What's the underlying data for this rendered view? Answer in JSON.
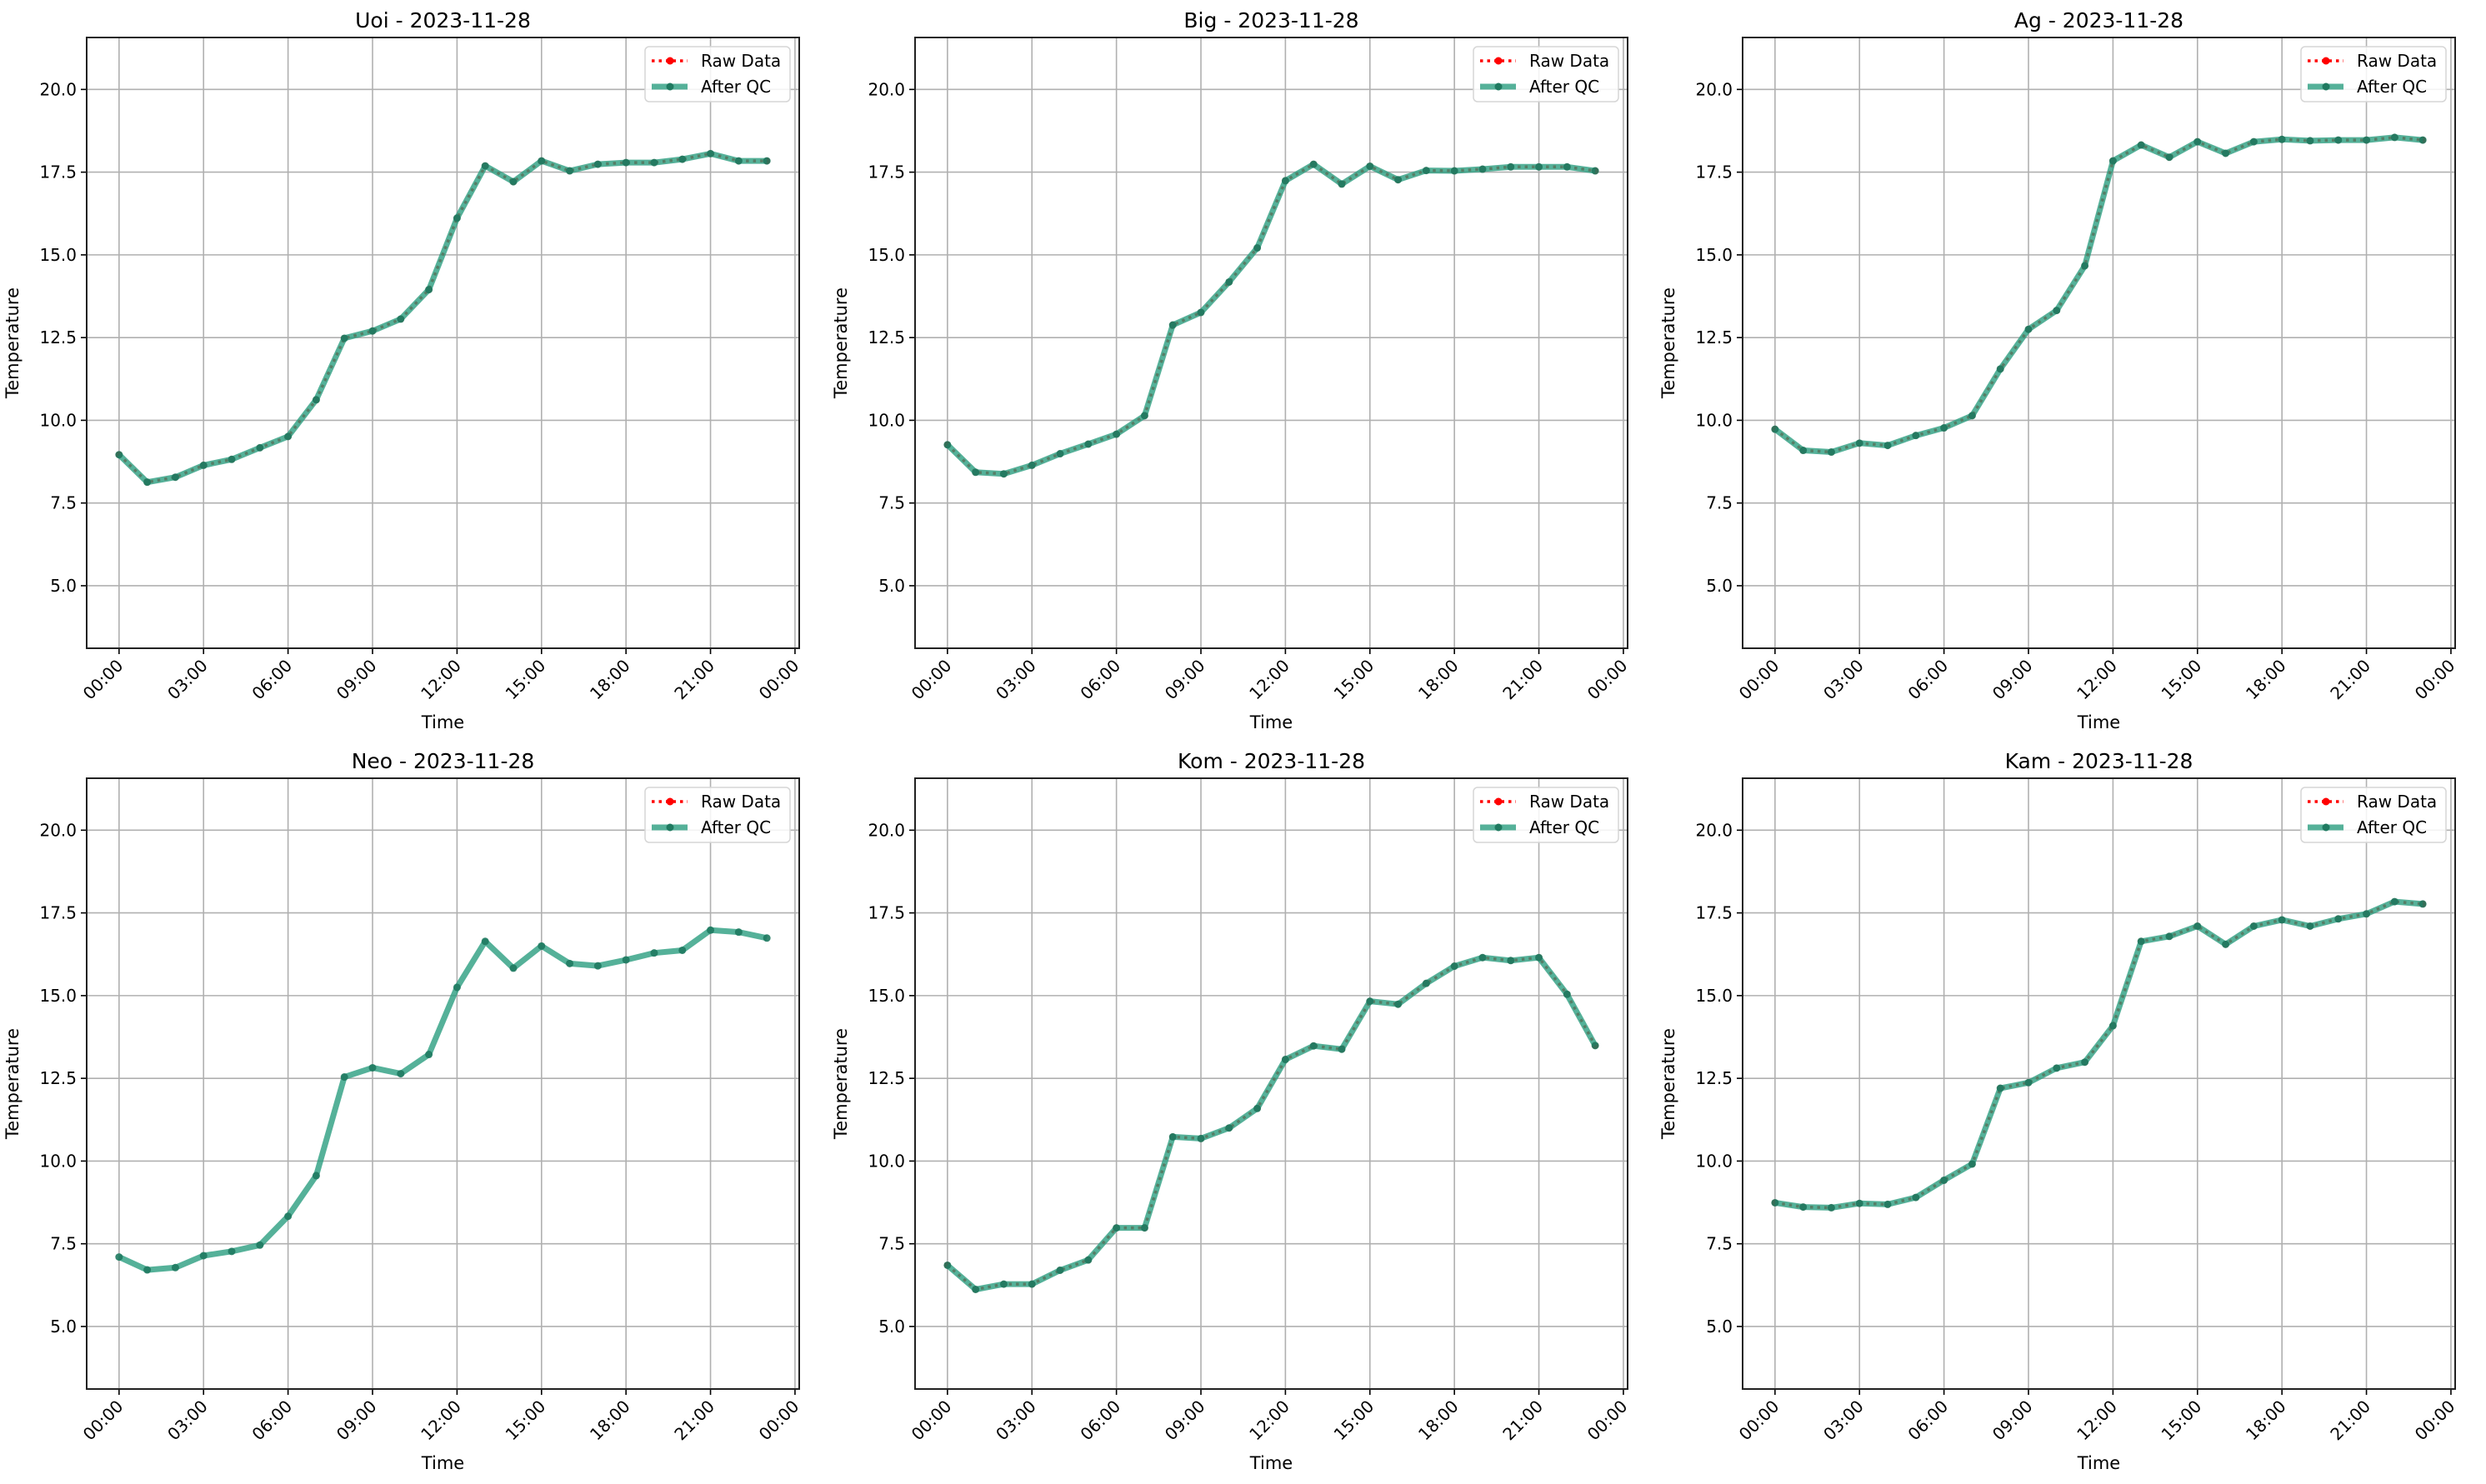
{
  "chart_data": {
    "type": "line",
    "layout": "2x3 grid of subplots",
    "shared": {
      "xlabel": "Time",
      "ylabel": "Temperature",
      "x_hours": [
        0,
        1,
        2,
        3,
        4,
        5,
        6,
        7,
        8,
        9,
        10,
        11,
        12,
        13,
        14,
        15,
        16,
        17,
        18,
        19,
        20,
        21,
        22,
        23
      ],
      "xticks_hours": [
        0,
        3,
        6,
        9,
        12,
        15,
        18,
        21,
        24
      ],
      "xtick_labels": [
        "00:00",
        "03:00",
        "06:00",
        "09:00",
        "12:00",
        "15:00",
        "18:00",
        "21:00",
        "00:00"
      ],
      "xlim_hours": [
        -1.15,
        24.15
      ],
      "yticks": [
        5.0,
        7.5,
        10.0,
        12.5,
        15.0,
        17.5,
        20.0
      ],
      "ytick_labels": [
        "5.0",
        "7.5",
        "10.0",
        "12.5",
        "15.0",
        "17.5",
        "20.0"
      ],
      "ylim": [
        3.11,
        21.57
      ],
      "grid": true,
      "legend_placement": "top-right",
      "legend": [
        {
          "label": "Raw Data",
          "color": "#ff0000",
          "style": "dotted, circle markers"
        },
        {
          "label": "After QC",
          "color": "#2a9d7f",
          "style": "solid thick, circle markers"
        }
      ]
    },
    "panels": [
      {
        "title": "Uoi - 2023-11-28",
        "raw": [
          8.96,
          8.13,
          8.28,
          8.64,
          8.82,
          9.17,
          9.51,
          10.62,
          12.48,
          12.7,
          13.06,
          13.95,
          16.11,
          17.69,
          17.21,
          17.84,
          17.54,
          17.74,
          17.79,
          17.79,
          17.89,
          18.06,
          17.84,
          17.84
        ],
        "qc": [
          8.96,
          8.13,
          8.28,
          8.64,
          8.82,
          9.17,
          9.51,
          10.62,
          12.48,
          12.7,
          13.06,
          13.95,
          16.11,
          17.69,
          17.21,
          17.84,
          17.54,
          17.74,
          17.79,
          17.79,
          17.89,
          18.06,
          17.84,
          17.84
        ]
      },
      {
        "title": "Big - 2023-11-28",
        "raw": [
          9.26,
          8.43,
          8.38,
          8.64,
          8.99,
          9.28,
          9.58,
          10.14,
          12.88,
          13.26,
          14.18,
          15.21,
          17.24,
          17.74,
          17.14,
          17.68,
          17.27,
          17.55,
          17.54,
          17.59,
          17.66,
          17.66,
          17.66,
          17.54
        ],
        "qc": [
          9.26,
          8.43,
          8.38,
          8.64,
          8.99,
          9.28,
          9.58,
          10.14,
          12.88,
          13.26,
          14.18,
          15.21,
          17.24,
          17.74,
          17.14,
          17.68,
          17.27,
          17.55,
          17.54,
          17.59,
          17.66,
          17.66,
          17.66,
          17.54
        ]
      },
      {
        "title": "Ag - 2023-11-28",
        "raw": [
          9.73,
          9.09,
          9.04,
          9.31,
          9.24,
          9.54,
          9.77,
          10.14,
          11.55,
          12.75,
          13.32,
          14.67,
          17.84,
          18.32,
          17.95,
          18.42,
          18.07,
          18.42,
          18.49,
          18.45,
          18.47,
          18.47,
          18.55,
          18.47
        ],
        "qc": [
          9.73,
          9.09,
          9.04,
          9.31,
          9.24,
          9.54,
          9.77,
          10.14,
          11.55,
          12.75,
          13.32,
          14.67,
          17.84,
          18.32,
          17.95,
          18.42,
          18.07,
          18.42,
          18.49,
          18.45,
          18.47,
          18.47,
          18.55,
          18.47
        ]
      },
      {
        "title": "Neo - 2023-11-28",
        "raw": null,
        "qc": [
          7.1,
          6.71,
          6.78,
          7.14,
          7.27,
          7.46,
          8.33,
          9.56,
          12.54,
          12.82,
          12.64,
          13.22,
          15.25,
          16.64,
          15.83,
          16.5,
          15.97,
          15.9,
          16.08,
          16.29,
          16.37,
          16.98,
          16.92,
          16.74
        ]
      },
      {
        "title": "Kom - 2023-11-28",
        "raw": [
          6.85,
          6.12,
          6.28,
          6.28,
          6.7,
          7.01,
          7.98,
          7.98,
          10.73,
          10.68,
          11.0,
          11.59,
          13.07,
          13.48,
          13.38,
          14.83,
          14.74,
          15.37,
          15.89,
          16.15,
          16.06,
          16.15,
          15.04,
          13.49
        ],
        "qc": [
          6.85,
          6.12,
          6.28,
          6.28,
          6.7,
          7.01,
          7.98,
          7.98,
          10.73,
          10.68,
          11.0,
          11.59,
          13.07,
          13.48,
          13.38,
          14.83,
          14.74,
          15.37,
          15.89,
          16.15,
          16.06,
          16.15,
          15.04,
          13.49
        ]
      },
      {
        "title": "Kam - 2023-11-28",
        "raw": [
          8.74,
          8.61,
          8.59,
          8.72,
          8.69,
          8.9,
          9.42,
          9.91,
          12.2,
          12.37,
          12.81,
          12.99,
          14.09,
          16.64,
          16.79,
          17.1,
          16.55,
          17.1,
          17.29,
          17.1,
          17.32,
          17.47,
          17.84,
          17.77
        ],
        "qc": [
          8.74,
          8.61,
          8.59,
          8.72,
          8.69,
          8.9,
          9.42,
          9.91,
          12.2,
          12.37,
          12.81,
          12.99,
          14.09,
          16.64,
          16.79,
          17.1,
          16.55,
          17.1,
          17.29,
          17.1,
          17.32,
          17.47,
          17.84,
          17.77
        ]
      }
    ]
  }
}
